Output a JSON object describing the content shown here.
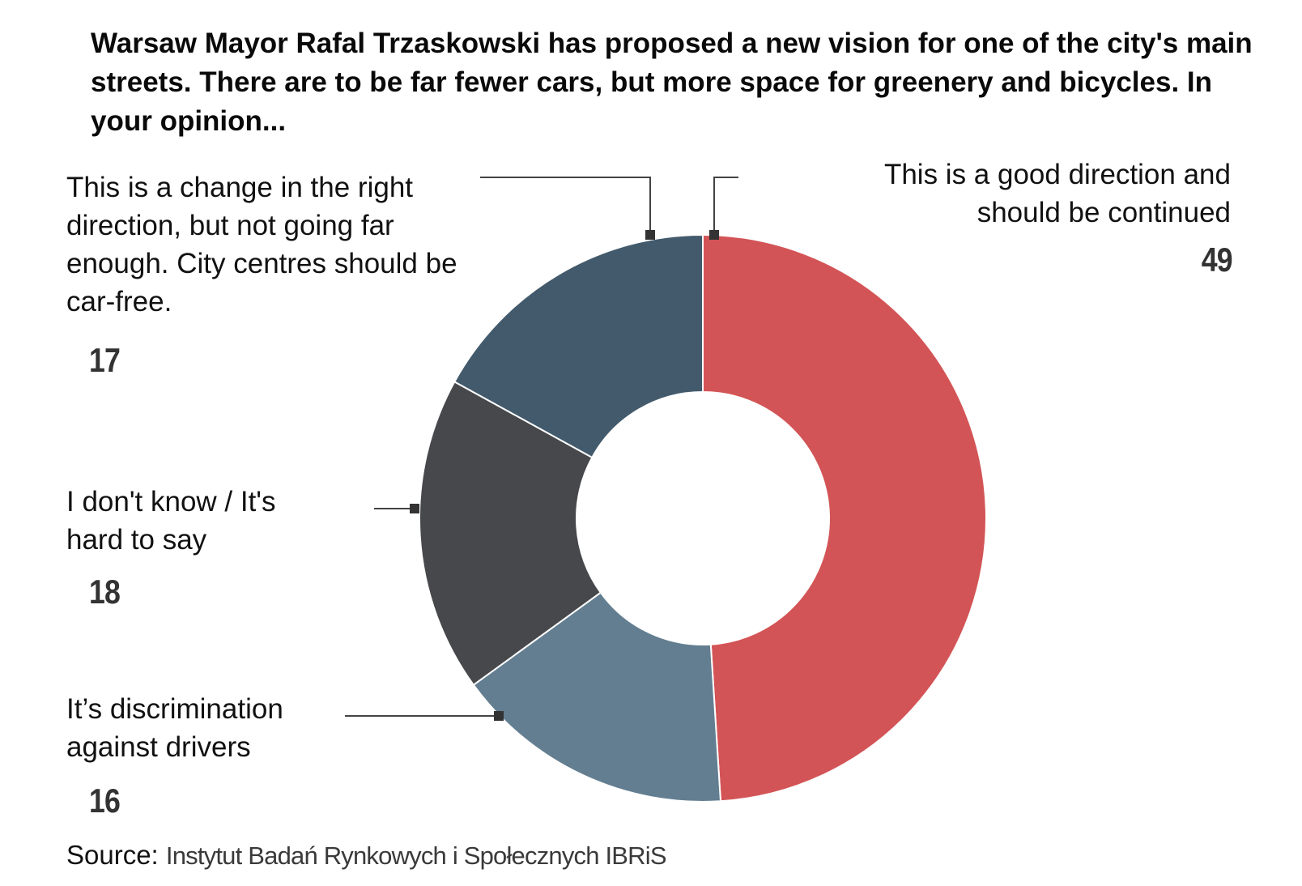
{
  "title": "Warsaw Mayor Rafal Trzaskowski has proposed a new vision for one of the city's main streets. There are to be far fewer cars, but more space for greenery and bicycles. In your opinion...",
  "source": {
    "prefix": "Source:",
    "name": "Instytut Badań Rynkowych i Społecznych IBRiS"
  },
  "chart_data": {
    "type": "pie",
    "variant": "donut",
    "title": "Warsaw Mayor Rafal Trzaskowski has proposed a new vision for one of the city's main streets. There are to be far fewer cars, but more space for greenery and bicycles. In your opinion...",
    "slices": [
      {
        "label": "This is a good direction and should be continued",
        "value": 49,
        "value_label": "49",
        "color": "#d35456"
      },
      {
        "label": "It’s discrimination against drivers",
        "value": 16,
        "value_label": "16",
        "color": "#637e91"
      },
      {
        "label": "I don't know / It's hard to say",
        "value": 18,
        "value_label": "18",
        "color": "#47484c"
      },
      {
        "label": "This is a change in the right direction, but not going far enough. City centres should be car-free.",
        "value": 17,
        "value_label": "17",
        "color": "#425a6c"
      }
    ],
    "start": "top",
    "direction": "clockwise",
    "legend": "none"
  }
}
